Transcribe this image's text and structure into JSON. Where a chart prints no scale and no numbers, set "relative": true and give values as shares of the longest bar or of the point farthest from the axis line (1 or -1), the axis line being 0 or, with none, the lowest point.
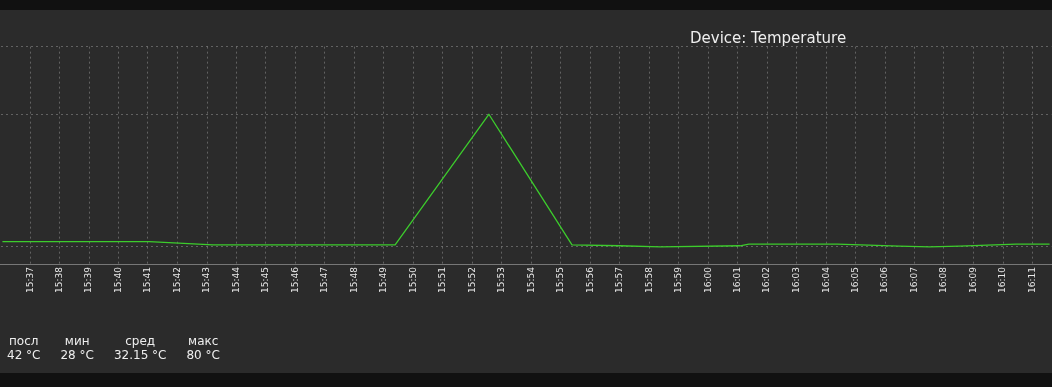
{
  "chart_data": {
    "type": "line",
    "title": "Device: Temperature",
    "relative": true,
    "color": "#3ccc2c",
    "grid": true,
    "legend": false,
    "x": [
      15.601,
      15.684,
      15.72,
      15.823,
      15.876,
      15.923,
      15.95,
      15.973,
      16.018,
      16.023,
      16.073,
      16.108,
      16.125,
      16.142,
      16.174,
      16.193
    ],
    "values": [
      0.04,
      0.04,
      0.015,
      0.015,
      1,
      0.015,
      0.008,
      0,
      0.008,
      0.02,
      0.02,
      0.005,
      0,
      0.005,
      0.02,
      0.02
    ],
    "xlim": [
      15.6,
      16.194
    ],
    "xticks": [
      {
        "value": 15.6167,
        "label": "15:37"
      },
      {
        "value": 15.6333,
        "label": "15:38"
      },
      {
        "value": 15.65,
        "label": "15:39"
      },
      {
        "value": 15.6667,
        "label": "15:40"
      },
      {
        "value": 15.6833,
        "label": "15:41"
      },
      {
        "value": 15.7,
        "label": "15:42"
      },
      {
        "value": 15.7167,
        "label": "15:43"
      },
      {
        "value": 15.7333,
        "label": "15:44"
      },
      {
        "value": 15.75,
        "label": "15:45"
      },
      {
        "value": 15.7667,
        "label": "15:46"
      },
      {
        "value": 15.7833,
        "label": "15:47"
      },
      {
        "value": 15.8,
        "label": "15:48"
      },
      {
        "value": 15.8167,
        "label": "15:49"
      },
      {
        "value": 15.8333,
        "label": "15:50"
      },
      {
        "value": 15.85,
        "label": "15:51"
      },
      {
        "value": 15.8667,
        "label": "15:52"
      },
      {
        "value": 15.8833,
        "label": "15:53"
      },
      {
        "value": 15.9,
        "label": "15:54"
      },
      {
        "value": 15.9167,
        "label": "15:55"
      },
      {
        "value": 15.9333,
        "label": "15:56"
      },
      {
        "value": 15.95,
        "label": "15:57"
      },
      {
        "value": 15.9667,
        "label": "15:58"
      },
      {
        "value": 15.9833,
        "label": "15:59"
      },
      {
        "value": 16,
        "label": "16:00"
      },
      {
        "value": 16.0167,
        "label": "16:01"
      },
      {
        "value": 16.0333,
        "label": "16:02"
      },
      {
        "value": 16.05,
        "label": "16:03"
      },
      {
        "value": 16.0667,
        "label": "16:04"
      },
      {
        "value": 16.0833,
        "label": "16:05"
      },
      {
        "value": 16.1,
        "label": "16:06"
      },
      {
        "value": 16.1167,
        "label": "16:07"
      },
      {
        "value": 16.1333,
        "label": "16:08"
      },
      {
        "value": 16.15,
        "label": "16:09"
      },
      {
        "value": 16.1667,
        "label": "16:10"
      },
      {
        "value": 16.1833,
        "label": "16:11"
      }
    ],
    "tick_labels": "x",
    "annotations": [
      "посл",
      "42 °C",
      "мин",
      "28 °C",
      "сред",
      "32.15 °C",
      "макс",
      "80 °C"
    ]
  }
}
